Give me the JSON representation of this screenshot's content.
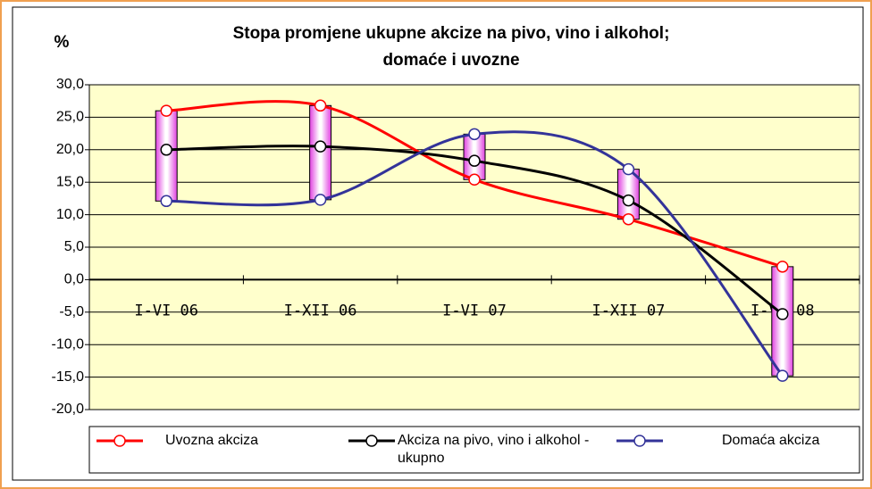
{
  "chart_data": {
    "type": "line",
    "title": [
      "Stopa promjene ukupne akcize na pivo, vino i alkohol;",
      "domaće i uvozne"
    ],
    "y_label": "%",
    "categories": [
      "I-VI 06",
      "I-XII 06",
      "I-VI 07",
      "I-XII 07",
      "I-VI 08"
    ],
    "series": [
      {
        "name": "Uvozna akciza",
        "color": "#ff0000",
        "values": [
          26.0,
          26.8,
          15.4,
          9.3,
          2.0
        ]
      },
      {
        "name": "Akciza na pivo, vino i alkohol - ukupno",
        "color": "#000000",
        "values": [
          20.0,
          20.5,
          18.3,
          12.2,
          -5.3
        ]
      },
      {
        "name": "Domaća akciza",
        "color": "#333399",
        "values": [
          12.1,
          12.3,
          22.4,
          17.0,
          -14.8
        ]
      }
    ],
    "ylim": [
      -20,
      30
    ],
    "yticks": [
      {
        "value": -20,
        "label": "-20,0"
      },
      {
        "value": -15,
        "label": "-15,0"
      },
      {
        "value": -10,
        "label": "-10,0"
      },
      {
        "value": -5,
        "label": "-5,0"
      },
      {
        "value": 0,
        "label": "0,0"
      },
      {
        "value": 5,
        "label": "5,0"
      },
      {
        "value": 10,
        "label": "10,0"
      },
      {
        "value": 15,
        "label": "15,0"
      },
      {
        "value": 20,
        "label": "20,0"
      },
      {
        "value": 25,
        "label": "25,0"
      },
      {
        "value": 30,
        "label": "30,0"
      }
    ],
    "grid": true,
    "legend": "bottom",
    "smooth": true,
    "up_down_bars": true
  }
}
